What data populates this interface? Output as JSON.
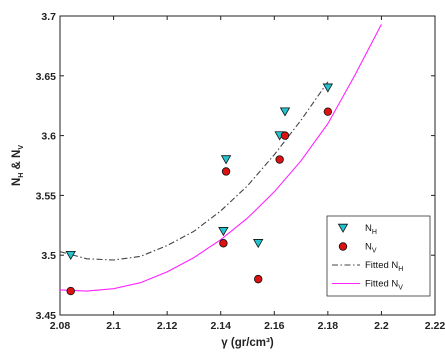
{
  "chart_data": {
    "type": "scatter",
    "xlabel": "γ (gr/cm³)",
    "ylabel": "N_H & N_V",
    "xlim": [
      2.08,
      2.22
    ],
    "ylim": [
      3.45,
      3.7
    ],
    "xticks": [
      2.08,
      2.1,
      2.12,
      2.14,
      2.16,
      2.18,
      2.2,
      2.22
    ],
    "xtick_labels": [
      "2.08",
      "2.1",
      "2.12",
      "2.14",
      "2.16",
      "2.18",
      "2.2",
      "2.22"
    ],
    "yticks": [
      3.45,
      3.5,
      3.55,
      3.6,
      3.65,
      3.7
    ],
    "ytick_labels": [
      "3.45",
      "3.5",
      "3.55",
      "3.6",
      "3.65",
      "3.7"
    ],
    "grid": false,
    "legend_position": "bottom-right",
    "series": [
      {
        "name": "N_H",
        "kind": "scatter",
        "marker": "triangle-down",
        "color": "#22c4d0",
        "x": [
          2.084,
          2.141,
          2.142,
          2.154,
          2.162,
          2.164,
          2.18
        ],
        "y": [
          3.5,
          3.52,
          3.58,
          3.51,
          3.6,
          3.62,
          3.64
        ]
      },
      {
        "name": "N_V",
        "kind": "scatter",
        "marker": "circle",
        "color": "#dd1111",
        "x": [
          2.084,
          2.141,
          2.142,
          2.154,
          2.162,
          2.164,
          2.18
        ],
        "y": [
          3.47,
          3.51,
          3.57,
          3.48,
          3.58,
          3.6,
          3.62
        ]
      },
      {
        "name": "Fitted N_H",
        "kind": "line",
        "style": "dash-dot",
        "color": "#444444",
        "x": [
          2.08,
          2.09,
          2.1,
          2.11,
          2.12,
          2.13,
          2.14,
          2.15,
          2.16,
          2.17,
          2.18
        ],
        "y": [
          3.503,
          3.497,
          3.496,
          3.499,
          3.508,
          3.52,
          3.537,
          3.558,
          3.584,
          3.613,
          3.645
        ]
      },
      {
        "name": "Fitted N_V",
        "kind": "line",
        "style": "solid",
        "color": "#ff22ff",
        "x": [
          2.08,
          2.09,
          2.1,
          2.11,
          2.12,
          2.13,
          2.14,
          2.15,
          2.16,
          2.17,
          2.18,
          2.19,
          2.2
        ],
        "y": [
          3.471,
          3.47,
          3.472,
          3.477,
          3.486,
          3.498,
          3.513,
          3.531,
          3.553,
          3.579,
          3.61,
          3.65,
          3.693
        ]
      }
    ],
    "legend": [
      {
        "main": "N",
        "sub": "H",
        "series": 0
      },
      {
        "main": "N",
        "sub": "V",
        "series": 1
      },
      {
        "main": "Fitted N",
        "sub": "H",
        "series": 2
      },
      {
        "main": "Fitted N",
        "sub": "V",
        "series": 3
      }
    ]
  }
}
